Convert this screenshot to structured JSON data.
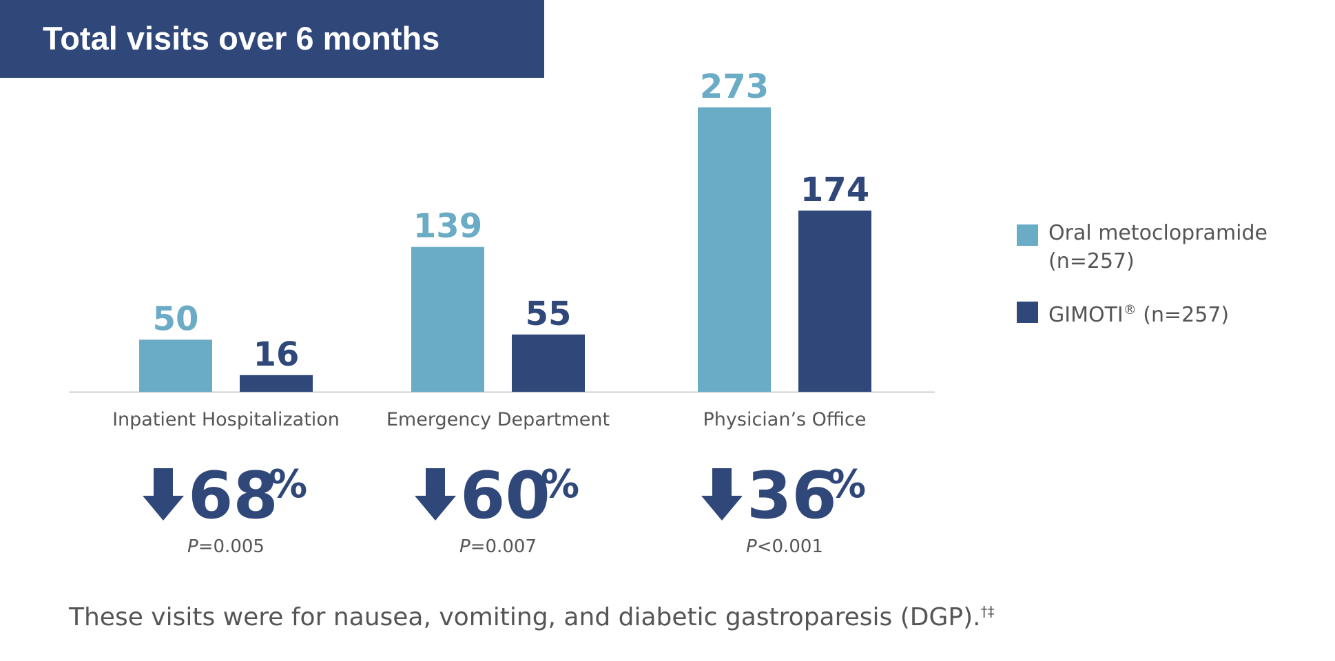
{
  "title": "Total visits over 6 months",
  "colors": {
    "oral": "#6aabc5",
    "gimoti": "#2f4779",
    "axis": "#cfcfcf",
    "text": "#555555"
  },
  "chart_data": {
    "type": "bar",
    "title": "Total visits over 6 months",
    "categories": [
      "Inpatient Hospitalization",
      "Emergency Department",
      "Physician’s Office"
    ],
    "series": [
      {
        "name": "Oral metoclopramide (n=257)",
        "values": [
          50,
          139,
          273
        ]
      },
      {
        "name": "GIMOTI® (n=257)",
        "values": [
          16,
          55,
          174
        ]
      }
    ],
    "ylim": [
      0,
      273
    ],
    "grid": false,
    "legend": "right",
    "reductions": [
      {
        "percent": "68",
        "sign": "%",
        "p_letter": "P",
        "p_rest": "=0.005"
      },
      {
        "percent": "60",
        "sign": "%",
        "p_letter": "P",
        "p_rest": "=0.007"
      },
      {
        "percent": "36",
        "sign": "%",
        "p_letter": "P",
        "p_rest": "<0.001"
      }
    ]
  },
  "legend": {
    "oral_line1": "Oral metoclopramide",
    "oral_line2": "(n=257)",
    "gimoti_name": "GIMOTI",
    "gimoti_mark": "®",
    "gimoti_rest": " (n=257)"
  },
  "footnote": {
    "text": "These visits were for nausea, vomiting, and diabetic gastroparesis (DGP).",
    "mark": "†‡"
  }
}
